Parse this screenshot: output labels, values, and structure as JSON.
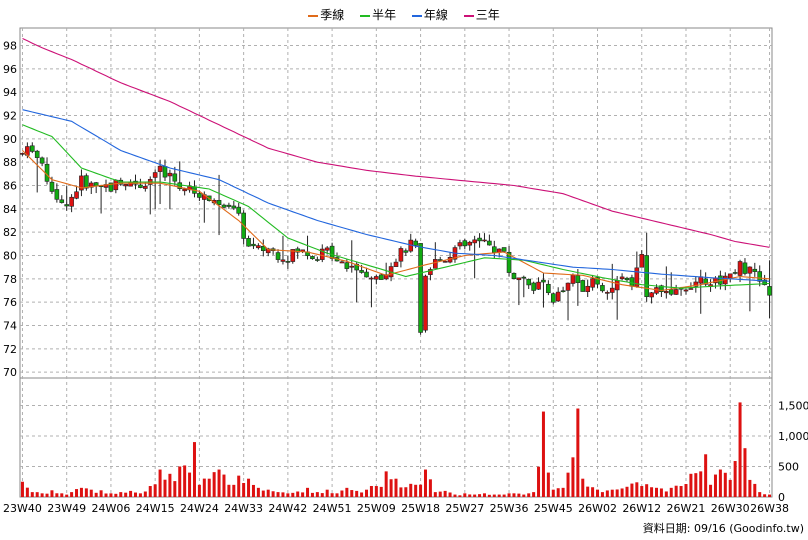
{
  "legend": [
    {
      "name": "季線",
      "color": "#e06b1a"
    },
    {
      "name": "半年",
      "color": "#22bb22"
    },
    {
      "name": "年線",
      "color": "#2266dd"
    },
    {
      "name": "三年",
      "color": "#cc1177"
    }
  ],
  "footer": {
    "text": "資料日期: 09/16 (Goodinfo.tw)"
  },
  "chart_data": {
    "type": "candlestick",
    "price_axis": {
      "ticks": [
        70,
        72,
        74,
        76,
        78,
        80,
        82,
        84,
        86,
        88,
        90,
        92,
        94,
        96,
        98
      ],
      "ylim": [
        69.5,
        99.5
      ]
    },
    "volume_axis": {
      "ticks": [
        "0",
        "500",
        "1,000",
        "1,500"
      ],
      "tick_values": [
        0,
        500,
        1000,
        1500
      ],
      "ylim": [
        0,
        1950
      ]
    },
    "x_tick_labels": [
      "23W40",
      "23W49",
      "24W06",
      "24W15",
      "24W24",
      "24W33",
      "24W42",
      "24W51",
      "25W09",
      "25W18",
      "25W27",
      "25W36",
      "25W45",
      "26W02",
      "26W12",
      "26W21",
      "26W30",
      "26W38"
    ],
    "x_tick_index": [
      0,
      9,
      18,
      27,
      36,
      45,
      54,
      63,
      72,
      81,
      90,
      99,
      108,
      117,
      126,
      135,
      144,
      152
    ],
    "n_weeks": 153,
    "ma_lines": [
      {
        "name": "季線",
        "color": "#e06b1a",
        "anchors": [
          [
            0,
            89.0
          ],
          [
            6,
            86.5
          ],
          [
            12,
            85.8
          ],
          [
            20,
            86.2
          ],
          [
            28,
            86.2
          ],
          [
            36,
            85.5
          ],
          [
            44,
            83.0
          ],
          [
            50,
            80.5
          ],
          [
            58,
            80.3
          ],
          [
            66,
            79.5
          ],
          [
            74,
            78.3
          ],
          [
            82,
            79.2
          ],
          [
            90,
            80.0
          ],
          [
            98,
            80.3
          ],
          [
            106,
            78.5
          ],
          [
            114,
            78.3
          ],
          [
            122,
            77.5
          ],
          [
            130,
            77.0
          ],
          [
            138,
            77.5
          ],
          [
            146,
            78.2
          ],
          [
            152,
            78.0
          ]
        ]
      },
      {
        "name": "半年",
        "color": "#22bb22",
        "anchors": [
          [
            0,
            91.2
          ],
          [
            6,
            90.2
          ],
          [
            12,
            87.5
          ],
          [
            20,
            86.3
          ],
          [
            28,
            86.3
          ],
          [
            38,
            85.7
          ],
          [
            46,
            84.2
          ],
          [
            54,
            81.5
          ],
          [
            62,
            80.2
          ],
          [
            70,
            79.2
          ],
          [
            78,
            78.2
          ],
          [
            86,
            79.0
          ],
          [
            94,
            79.8
          ],
          [
            102,
            79.6
          ],
          [
            110,
            78.8
          ],
          [
            118,
            78.1
          ],
          [
            126,
            77.5
          ],
          [
            134,
            77.2
          ],
          [
            142,
            77.4
          ],
          [
            152,
            77.6
          ]
        ]
      },
      {
        "name": "年線",
        "color": "#2266dd",
        "anchors": [
          [
            0,
            92.5
          ],
          [
            10,
            91.5
          ],
          [
            20,
            89.0
          ],
          [
            30,
            87.5
          ],
          [
            40,
            86.5
          ],
          [
            50,
            84.5
          ],
          [
            60,
            83.0
          ],
          [
            70,
            81.8
          ],
          [
            80,
            80.8
          ],
          [
            88,
            80.2
          ],
          [
            96,
            80.0
          ],
          [
            104,
            79.5
          ],
          [
            112,
            79.0
          ],
          [
            120,
            78.8
          ],
          [
            130,
            78.4
          ],
          [
            140,
            78.1
          ],
          [
            152,
            77.8
          ]
        ]
      },
      {
        "name": "三年",
        "color": "#cc1177",
        "anchors": [
          [
            0,
            98.6
          ],
          [
            4,
            97.8
          ],
          [
            10,
            96.8
          ],
          [
            20,
            94.8
          ],
          [
            30,
            93.2
          ],
          [
            40,
            91.2
          ],
          [
            50,
            89.2
          ],
          [
            60,
            88.0
          ],
          [
            70,
            87.3
          ],
          [
            80,
            86.8
          ],
          [
            90,
            86.4
          ],
          [
            100,
            86.0
          ],
          [
            110,
            85.3
          ],
          [
            120,
            83.8
          ],
          [
            130,
            82.8
          ],
          [
            140,
            81.8
          ],
          [
            145,
            81.2
          ],
          [
            152,
            80.7
          ]
        ]
      }
    ],
    "price_anchors": [
      [
        0,
        88.7
      ],
      [
        2,
        89.3
      ],
      [
        4,
        87.5
      ],
      [
        6,
        85.8
      ],
      [
        8,
        84.3
      ],
      [
        10,
        85.0
      ],
      [
        12,
        86.4
      ],
      [
        14,
        86.0
      ],
      [
        16,
        86.0
      ],
      [
        18,
        85.8
      ],
      [
        20,
        86.5
      ],
      [
        22,
        86.3
      ],
      [
        24,
        86.2
      ],
      [
        26,
        86.5
      ],
      [
        28,
        87.4
      ],
      [
        30,
        86.8
      ],
      [
        32,
        86.0
      ],
      [
        34,
        85.6
      ],
      [
        36,
        85.2
      ],
      [
        38,
        84.8
      ],
      [
        40,
        84.6
      ],
      [
        42,
        84.4
      ],
      [
        44,
        83.2
      ],
      [
        45,
        81.8
      ],
      [
        46,
        80.7
      ],
      [
        48,
        80.5
      ],
      [
        50,
        80.6
      ],
      [
        52,
        80.1
      ],
      [
        54,
        79.9
      ],
      [
        56,
        80.4
      ],
      [
        58,
        80.2
      ],
      [
        60,
        80.0
      ],
      [
        62,
        80.4
      ],
      [
        64,
        79.8
      ],
      [
        66,
        79.3
      ],
      [
        68,
        79.0
      ],
      [
        70,
        78.3
      ],
      [
        72,
        77.8
      ],
      [
        74,
        78.8
      ],
      [
        76,
        79.8
      ],
      [
        78,
        80.6
      ],
      [
        79,
        80.9
      ],
      [
        80,
        80.6
      ],
      [
        81,
        73.0
      ],
      [
        82,
        78.0
      ],
      [
        84,
        79.5
      ],
      [
        86,
        79.8
      ],
      [
        88,
        80.6
      ],
      [
        90,
        80.8
      ],
      [
        92,
        81.2
      ],
      [
        94,
        80.9
      ],
      [
        96,
        80.6
      ],
      [
        98,
        80.2
      ],
      [
        99,
        78.6
      ],
      [
        100,
        78.2
      ],
      [
        102,
        77.8
      ],
      [
        104,
        77.3
      ],
      [
        106,
        77.6
      ],
      [
        108,
        76.3
      ],
      [
        110,
        77.0
      ],
      [
        112,
        78.2
      ],
      [
        114,
        77.2
      ],
      [
        116,
        77.9
      ],
      [
        118,
        77.2
      ],
      [
        120,
        77.0
      ],
      [
        122,
        78.3
      ],
      [
        124,
        77.8
      ],
      [
        126,
        79.8
      ],
      [
        127,
        76.3
      ],
      [
        128,
        77.2
      ],
      [
        130,
        76.8
      ],
      [
        132,
        76.4
      ],
      [
        134,
        77.0
      ],
      [
        136,
        77.6
      ],
      [
        138,
        78.1
      ],
      [
        140,
        77.8
      ],
      [
        142,
        77.9
      ],
      [
        144,
        78.5
      ],
      [
        146,
        79.2
      ],
      [
        148,
        78.6
      ],
      [
        150,
        78.0
      ],
      [
        152,
        76.7
      ]
    ],
    "volume_anchors": [
      [
        0,
        250
      ],
      [
        2,
        80
      ],
      [
        4,
        60
      ],
      [
        6,
        110
      ],
      [
        8,
        60
      ],
      [
        10,
        80
      ],
      [
        12,
        150
      ],
      [
        14,
        120
      ],
      [
        16,
        110
      ],
      [
        18,
        60
      ],
      [
        20,
        80
      ],
      [
        22,
        100
      ],
      [
        24,
        60
      ],
      [
        26,
        180
      ],
      [
        28,
        450
      ],
      [
        30,
        380
      ],
      [
        32,
        500
      ],
      [
        34,
        400
      ],
      [
        35,
        900
      ],
      [
        36,
        200
      ],
      [
        38,
        300
      ],
      [
        40,
        450
      ],
      [
        42,
        200
      ],
      [
        44,
        350
      ],
      [
        46,
        300
      ],
      [
        48,
        150
      ],
      [
        50,
        120
      ],
      [
        52,
        80
      ],
      [
        54,
        60
      ],
      [
        56,
        90
      ],
      [
        58,
        150
      ],
      [
        60,
        80
      ],
      [
        62,
        120
      ],
      [
        64,
        60
      ],
      [
        66,
        150
      ],
      [
        68,
        100
      ],
      [
        70,
        120
      ],
      [
        72,
        180
      ],
      [
        74,
        420
      ],
      [
        76,
        300
      ],
      [
        78,
        160
      ],
      [
        80,
        200
      ],
      [
        82,
        450
      ],
      [
        84,
        80
      ],
      [
        86,
        100
      ],
      [
        88,
        40
      ],
      [
        90,
        60
      ],
      [
        92,
        40
      ],
      [
        94,
        60
      ],
      [
        96,
        40
      ],
      [
        98,
        40
      ],
      [
        100,
        60
      ],
      [
        102,
        40
      ],
      [
        104,
        80
      ],
      [
        106,
        1400
      ],
      [
        107,
        400
      ],
      [
        108,
        120
      ],
      [
        110,
        150
      ],
      [
        112,
        650
      ],
      [
        113,
        1450
      ],
      [
        114,
        300
      ],
      [
        116,
        160
      ],
      [
        118,
        80
      ],
      [
        120,
        120
      ],
      [
        122,
        140
      ],
      [
        124,
        220
      ],
      [
        126,
        180
      ],
      [
        128,
        160
      ],
      [
        130,
        140
      ],
      [
        132,
        150
      ],
      [
        134,
        180
      ],
      [
        136,
        380
      ],
      [
        138,
        420
      ],
      [
        139,
        700
      ],
      [
        140,
        200
      ],
      [
        142,
        450
      ],
      [
        144,
        280
      ],
      [
        146,
        1550
      ],
      [
        147,
        800
      ],
      [
        148,
        280
      ],
      [
        150,
        80
      ],
      [
        152,
        40
      ]
    ]
  }
}
